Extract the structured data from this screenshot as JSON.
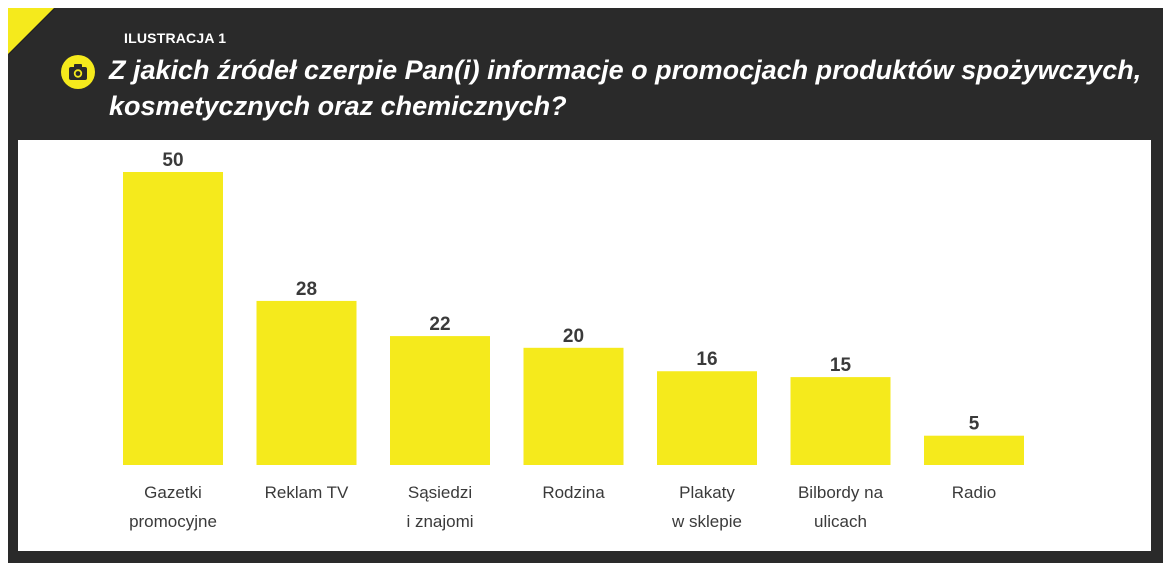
{
  "header": {
    "label": "ILUSTRACJA 1",
    "title": "Z jakich źródeł czerpie Pan(i) informacje o promocjach produktów spożywczych, kosmetycznych oraz chemicznych?",
    "icon": "camera-icon"
  },
  "colors": {
    "bar": "#f5ea1c",
    "frame": "#2a2a2a",
    "accent": "#f5ea1c"
  },
  "chart_data": {
    "type": "bar",
    "title": "Z jakich źródeł czerpie Pan(i) informacje o promocjach produktów spożywczych, kosmetycznych oraz chemicznych?",
    "categories": [
      [
        "Gazetki",
        "promocyjne"
      ],
      [
        "Reklam TV"
      ],
      [
        "Sąsiedzi",
        "i znajomi"
      ],
      [
        "Rodzina"
      ],
      [
        "Plakaty",
        "w sklepie"
      ],
      [
        "Bilbordy na",
        "ulicach"
      ],
      [
        "Radio"
      ]
    ],
    "values": [
      50,
      28,
      22,
      20,
      16,
      15,
      5
    ],
    "ylim": [
      0,
      50
    ],
    "grid": false,
    "legend": "none"
  }
}
